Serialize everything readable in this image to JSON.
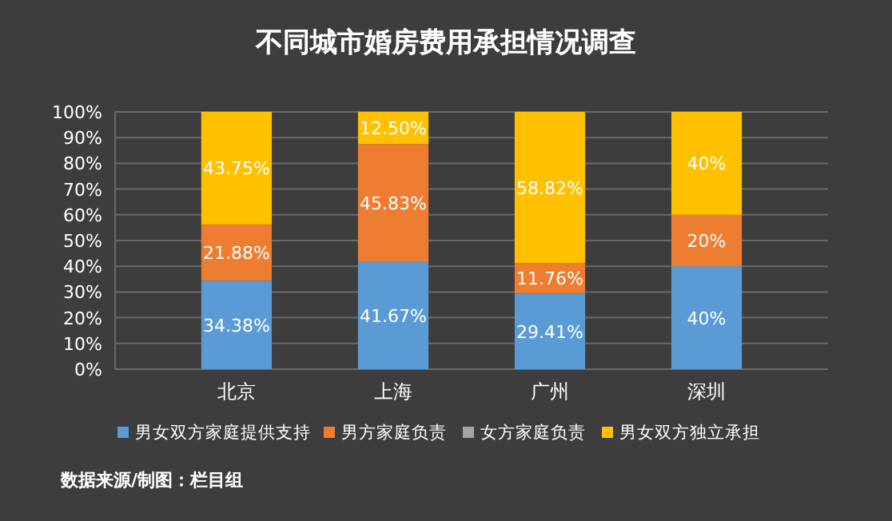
{
  "chart_data": {
    "type": "bar",
    "title": "不同城市婚房费用承担情况调查",
    "stacked": true,
    "categories": [
      "北京",
      "上海",
      "广州",
      "深圳"
    ],
    "series": [
      {
        "name": "男女双方家庭提供支持",
        "color": "#5b9bd5",
        "values": [
          34.38,
          41.67,
          29.41,
          40
        ],
        "value_labels": [
          "34.38%",
          "41.67%",
          "29.41%",
          "40%"
        ]
      },
      {
        "name": "男方家庭负责",
        "color": "#ed7d31",
        "values": [
          21.88,
          45.83,
          11.76,
          20
        ],
        "value_labels": [
          "21.88%",
          "45.83%",
          "11.76%",
          "20%"
        ]
      },
      {
        "name": "女方家庭负责",
        "color": "#a5a5a5",
        "values": [
          0,
          0,
          0,
          0
        ],
        "value_labels": [
          null,
          null,
          null,
          null
        ]
      },
      {
        "name": "男女双方独立承担",
        "color": "#ffc000",
        "values": [
          43.75,
          12.5,
          58.82,
          40
        ],
        "value_labels": [
          "43.75%",
          "12.50%",
          "58.82%",
          "40%"
        ]
      }
    ],
    "ylim": [
      0,
      100
    ],
    "yticks": [
      {
        "value": 0,
        "label": "0%"
      },
      {
        "value": 10,
        "label": "10%"
      },
      {
        "value": 20,
        "label": "20%"
      },
      {
        "value": 30,
        "label": "30%"
      },
      {
        "value": 40,
        "label": "40%"
      },
      {
        "value": 50,
        "label": "50%"
      },
      {
        "value": 60,
        "label": "60%"
      },
      {
        "value": 70,
        "label": "70%"
      },
      {
        "value": 80,
        "label": "80%"
      },
      {
        "value": 90,
        "label": "90%"
      },
      {
        "value": 100,
        "label": "100%"
      }
    ],
    "grid": true,
    "legend": "bottom",
    "annotations": [
      "数据来源/制图：栏目组"
    ]
  }
}
